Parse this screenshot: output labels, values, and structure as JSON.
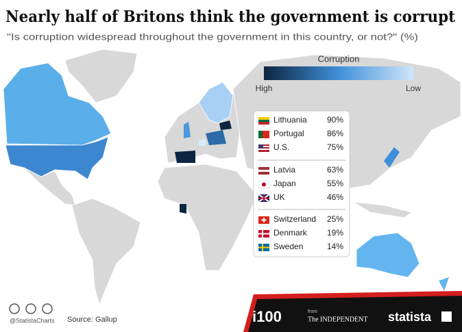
{
  "header": {
    "title": "Nearly half of Britons think the government is corrupt",
    "subtitle": "\"Is corruption widespread throughout the government in this country, or not?\" (%)"
  },
  "legend": {
    "title": "Corruption",
    "high": "High",
    "low": "Low"
  },
  "table": {
    "rows": [
      [
        "Lithuania",
        "90%"
      ],
      [
        "Portugal",
        "86%"
      ],
      [
        "U.S.",
        "75%"
      ],
      [
        "Latvia",
        "63%"
      ],
      [
        "Japan",
        "55%"
      ],
      [
        "UK",
        "46%"
      ],
      [
        "Switzerland",
        "25%"
      ],
      [
        "Denmark",
        "19%"
      ],
      [
        "Sweden",
        "14%"
      ]
    ]
  },
  "footer": {
    "handle": "@StatistaCharts",
    "source": "Source: Gallup",
    "i100": "i100",
    "from": "from",
    "independent": "The INDEPENDENT",
    "statista": "statista"
  }
}
